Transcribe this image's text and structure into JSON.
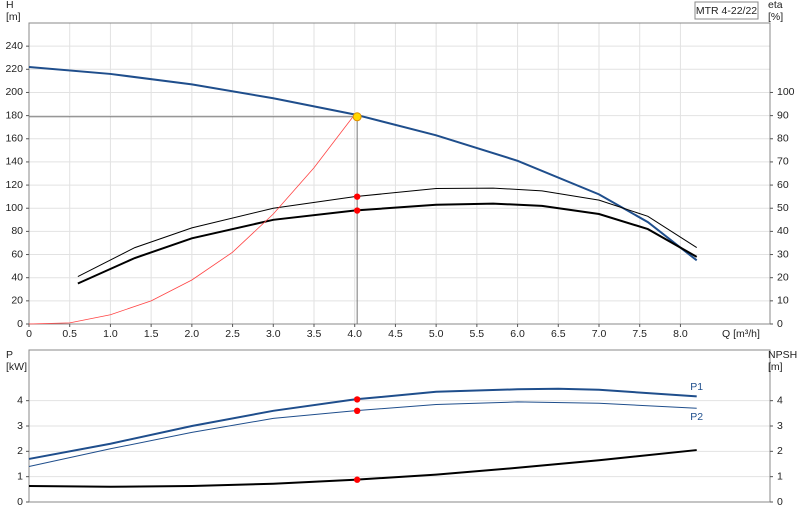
{
  "chart_data": [
    {
      "type": "line",
      "title": "MTR 4-22/22",
      "ylabel": [
        "H",
        "[m]"
      ],
      "y2label": [
        "eta",
        "[%]"
      ],
      "xlabel": "Q [m³/h]",
      "xlim": [
        0,
        9.1
      ],
      "xticks": [
        0,
        {
          "value": 0.5,
          "label": "0.5"
        },
        {
          "value": 1,
          "label": "1.0"
        },
        {
          "value": 1.5,
          "label": "1.5"
        },
        {
          "value": 2,
          "label": "2.0"
        },
        {
          "value": 2.5,
          "label": "2.5"
        },
        {
          "value": 3,
          "label": "3.0"
        },
        {
          "value": 3.5,
          "label": "3.5"
        },
        {
          "value": 4,
          "label": "4.0"
        },
        {
          "value": 4.5,
          "label": "4.5"
        },
        {
          "value": 5,
          "label": "5.0"
        },
        {
          "value": 5.5,
          "label": "5.5"
        },
        {
          "value": 6,
          "label": "6.0"
        },
        {
          "value": 6.5,
          "label": "6.5"
        },
        {
          "value": 7,
          "label": "7.0"
        },
        {
          "value": 7.5,
          "label": "7.5"
        },
        {
          "value": 8,
          "label": "8.0"
        }
      ],
      "ylim": [
        0,
        260
      ],
      "yticks": [
        0,
        20,
        40,
        60,
        80,
        100,
        120,
        140,
        160,
        180,
        200,
        220,
        240
      ],
      "y2lim": [
        0,
        130
      ],
      "y2ticks": [
        0,
        10,
        20,
        30,
        40,
        50,
        60,
        70,
        80,
        90,
        100
      ],
      "grid": true,
      "series": [
        {
          "color": "#1f4e8c",
          "linewidth": 2,
          "x": [
            0,
            1,
            2,
            3,
            4,
            5,
            6,
            7,
            7.6,
            8.2
          ],
          "values": [
            222,
            216,
            207,
            195,
            181,
            163,
            141,
            112,
            88,
            55
          ]
        },
        {
          "color": "#000000",
          "linewidth": 2,
          "axis": "y2",
          "x": [
            0.6,
            1.3,
            2,
            3,
            4,
            5,
            5.7,
            6.3,
            7,
            7.6,
            8.2
          ],
          "values": [
            17.5,
            28.5,
            37,
            45,
            49,
            51.5,
            52,
            51,
            47.5,
            41,
            29
          ]
        },
        {
          "color": "#000000",
          "linewidth": 1,
          "axis": "y2",
          "x": [
            0.6,
            1.3,
            2,
            3,
            4,
            5,
            5.7,
            6.3,
            7,
            7.6,
            8.2
          ],
          "values": [
            20.5,
            33,
            41.5,
            50,
            55,
            58.5,
            58.7,
            57.5,
            53.5,
            46.5,
            33
          ]
        },
        {
          "color": "#ff4444",
          "linewidth": 0.8,
          "x": [
            0,
            0.5,
            1,
            1.5,
            2,
            2.5,
            3,
            3.5,
            4
          ],
          "values": [
            0,
            1,
            8,
            20,
            38,
            62,
            95,
            135,
            181
          ]
        }
      ],
      "points": [
        {
          "x": 4.03,
          "y": 179,
          "color": "#ffd700",
          "guide": true
        },
        {
          "x": 4.03,
          "y": 55,
          "axis": "y2",
          "color": "#ff0000"
        },
        {
          "x": 4.03,
          "y": 49,
          "axis": "y2",
          "color": "#ff0000"
        }
      ]
    },
    {
      "type": "line",
      "ylabel": [
        "P",
        "[kW]"
      ],
      "y2label": [
        "NPSH",
        "[m]"
      ],
      "xlim": [
        0,
        9.1
      ],
      "ylim": [
        0,
        6
      ],
      "yticks": [
        0,
        1,
        2,
        3,
        4
      ],
      "y2lim": [
        0,
        6
      ],
      "y2ticks": [
        0,
        1,
        2,
        3,
        4
      ],
      "grid": true,
      "series": [
        {
          "name": "P1",
          "color": "#1f4e8c",
          "linewidth": 2,
          "x": [
            0,
            1,
            2,
            3,
            4,
            5,
            6,
            6.5,
            7,
            8.2
          ],
          "values": [
            1.7,
            2.3,
            3,
            3.6,
            4.05,
            4.35,
            4.45,
            4.47,
            4.43,
            4.17
          ]
        },
        {
          "name": "P2",
          "color": "#1f4e8c",
          "linewidth": 1,
          "x": [
            0,
            1,
            2,
            3,
            4,
            5,
            6,
            7,
            8.2
          ],
          "values": [
            1.4,
            2.1,
            2.75,
            3.3,
            3.6,
            3.85,
            3.95,
            3.9,
            3.7
          ]
        },
        {
          "color": "#000000",
          "linewidth": 2,
          "axis": "y2",
          "x": [
            0,
            1,
            2,
            3,
            4,
            5,
            6,
            7,
            8.2
          ],
          "values": [
            0.63,
            0.6,
            0.63,
            0.72,
            0.88,
            1.08,
            1.35,
            1.65,
            2.05
          ]
        }
      ],
      "points": [
        {
          "x": 4.03,
          "y": 4.05,
          "color": "#ff0000"
        },
        {
          "x": 4.03,
          "y": 3.6,
          "color": "#ff0000"
        },
        {
          "x": 4.03,
          "y": 0.88,
          "axis": "y2",
          "color": "#ff0000"
        }
      ]
    }
  ]
}
